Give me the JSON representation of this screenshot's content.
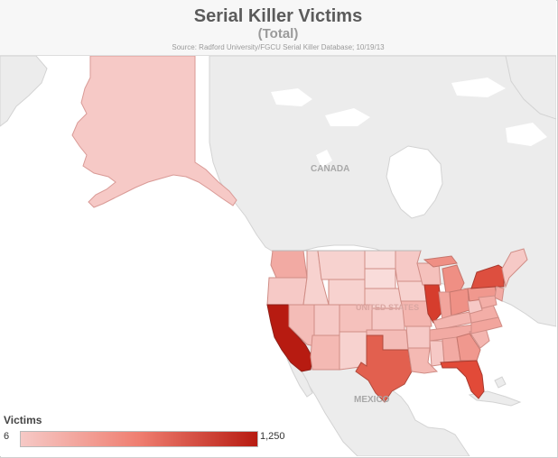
{
  "header": {
    "title": "Serial Killer Victims",
    "subtitle": "(Total)",
    "source": "Source: Radford University/FGCU Serial Killer Database; 10/19/13"
  },
  "map": {
    "labels": {
      "canada": "CANADA",
      "united_states": "UNITED STATES",
      "mexico": "MEXICO"
    },
    "colors": {
      "ocean": "#ffffff",
      "land": "#ececec",
      "border": "#cfcfcf",
      "scale_low": "#f6c9c6",
      "scale_mid": "#ef7e70",
      "scale_high": "#b71b11"
    },
    "highlighted_regions": [
      {
        "name": "California",
        "level": "highest"
      },
      {
        "name": "Texas",
        "level": "high"
      },
      {
        "name": "Florida",
        "level": "high"
      },
      {
        "name": "Illinois",
        "level": "high"
      },
      {
        "name": "New York",
        "level": "high"
      },
      {
        "name": "Washington",
        "level": "medium"
      },
      {
        "name": "Michigan",
        "level": "medium"
      },
      {
        "name": "Ohio",
        "level": "medium"
      }
    ]
  },
  "legend": {
    "title": "Victims",
    "min_label": "6",
    "max_label": "1,250",
    "min": 6,
    "max": 1250
  }
}
